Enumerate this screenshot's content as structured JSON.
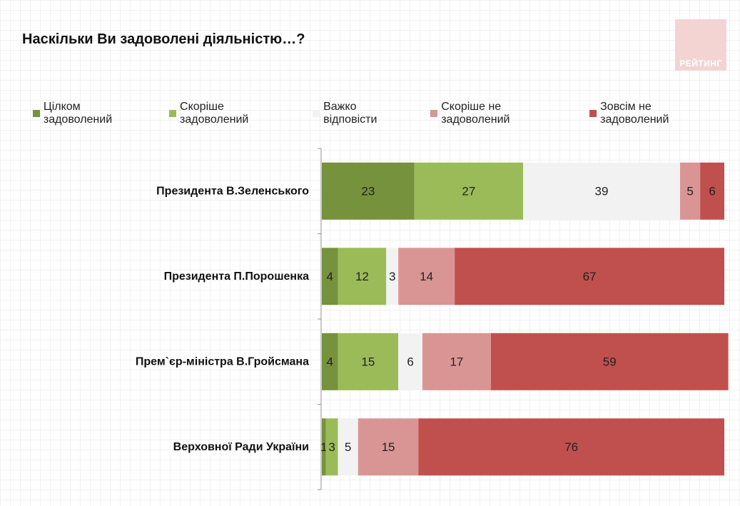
{
  "watermark": {
    "text": "РЕЙТИНГ",
    "color": "#f4d3d3"
  },
  "chart_data": {
    "type": "bar",
    "orientation": "horizontal",
    "stacked": true,
    "title": "Наскільки Ви задоволені діяльністю…?",
    "categories": [
      "Президента В.Зеленського",
      "Президента П.Порошенка",
      "Прем`єр-міністра В.Гройсмана",
      "Верховної Ради України"
    ],
    "series": [
      {
        "name": "Цілком задоволений",
        "color": "#76923c",
        "values": [
          23,
          4,
          4,
          1
        ]
      },
      {
        "name": "Скоріше задоволений",
        "color": "#9bbb59",
        "values": [
          27,
          12,
          15,
          3
        ]
      },
      {
        "name": "Важко відповісти",
        "color": "#f2f2f2",
        "values": [
          39,
          3,
          6,
          5
        ]
      },
      {
        "name": "Скоріше не задоволений",
        "color": "#d99594",
        "values": [
          5,
          14,
          17,
          15
        ]
      },
      {
        "name": "Зовсім не задоволений",
        "color": "#c0504d",
        "values": [
          6,
          67,
          59,
          76
        ]
      }
    ],
    "xlim": [
      0,
      100
    ],
    "legend_position": "top",
    "data_labels": true,
    "grid": false
  }
}
